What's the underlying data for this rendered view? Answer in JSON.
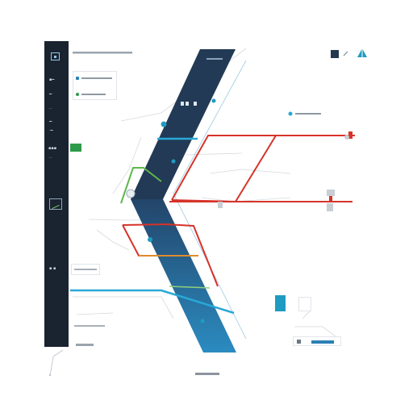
{
  "sidebar": {
    "items": [
      {
        "icon": "app-logo-icon"
      },
      {
        "icon": "menu-item-icon"
      },
      {
        "icon": "menu-item-icon"
      },
      {
        "icon": "menu-item-icon"
      },
      {
        "icon": "menu-item-icon"
      },
      {
        "icon": "menu-item-icon"
      },
      {
        "icon": "chart-icon"
      },
      {
        "icon": "menu-item-icon"
      }
    ],
    "active_item_icon": "active-indicator-icon"
  },
  "toolbar": {
    "icons": [
      "dark-square-icon",
      "pencil-icon",
      "network-icon"
    ]
  },
  "colors": {
    "sidebar_bg": "#1a2330",
    "band_dark": "#223a55",
    "band_blue": "#2a7fb6",
    "route_red": "#d6332a",
    "route_green": "#5db84a",
    "route_orange": "#e08a2c",
    "route_cyan": "#29a8d8",
    "accent_teal": "#1f9bc1"
  },
  "footer": {
    "caption_icon": "caption-glyphs"
  }
}
